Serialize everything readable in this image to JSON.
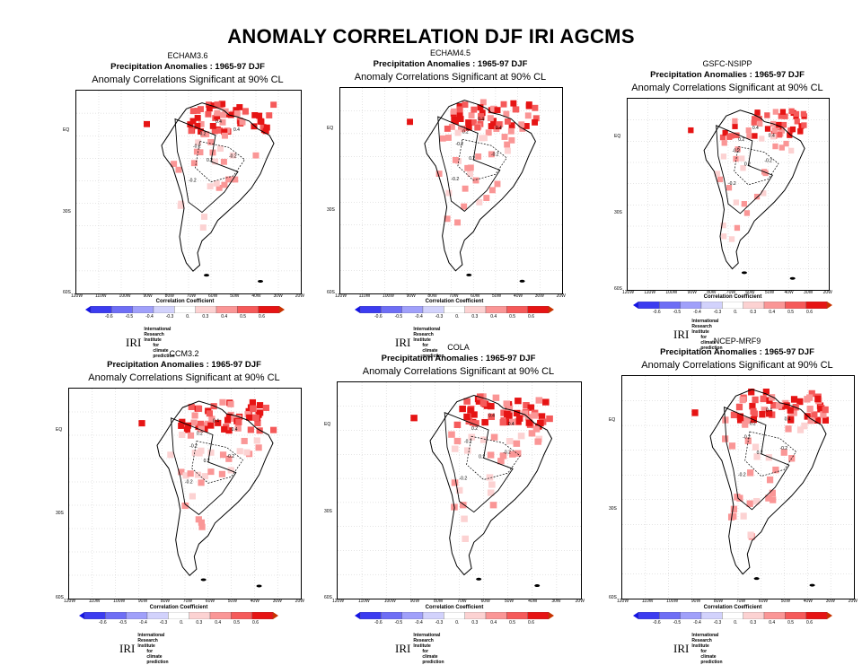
{
  "title": "ANOMALY CORRELATION  DJF IRI AGCMS",
  "panels": [
    {
      "model": "ECHAM3.6",
      "subtitle": "Precipitation Anomalies : 1965-97 DJF",
      "significance": "Anomaly Correlations Significant at 90% CL"
    },
    {
      "model": "ECHAM4.5",
      "subtitle": "Precipitation Anomalies : 1965-97 DJF",
      "significance": "Anomaly Correlations Significant at 90% CL"
    },
    {
      "model": "GSFC-NSIPP",
      "subtitle": "Precipitation Anomalies : 1965-97 DJF",
      "significance": "Anomaly Correlations Significant at 90% CL"
    },
    {
      "model": "CCM3.2",
      "subtitle": "Precipitation Anomalies : 1965-97 DJF",
      "significance": "Anomaly Correlations Significant at 90% CL"
    },
    {
      "model": "COLA",
      "subtitle": "Precipitation Anomalies : 1965-97 DJF",
      "significance": "Anomaly Correlations Significant at 90% CL"
    },
    {
      "model": "NCEP-MRF9",
      "subtitle": "Precipitation Anomalies : 1965-97 DJF",
      "significance": "Anomaly Correlations Significant at 90% CL"
    }
  ],
  "lat_labels": [
    "EQ",
    "30S",
    "60S"
  ],
  "lon_labels": [
    "120W",
    "110W",
    "100W",
    "90W",
    "80W",
    "70W",
    "60W",
    "50W",
    "40W",
    "30W",
    "20W"
  ],
  "colorbar": {
    "title": "Correlation Coefficient",
    "ticks": [
      "-0.6",
      "-0.5",
      "-0.4",
      "-0.3",
      "0.",
      "0.3",
      "0.4",
      "0.5",
      "0.6"
    ],
    "colors": [
      "#1414e6",
      "#3c3cf0",
      "#6e6ef5",
      "#a0a0fa",
      "#d2d2fc",
      "#ffffff",
      "#fcd2d2",
      "#fa9696",
      "#f55a5a",
      "#e61414",
      "#c83200"
    ]
  },
  "contour_labels": [
    "0.4",
    "0.2",
    "-0.2",
    "0.2",
    "-0.2",
    "0.4",
    "-0.2"
  ],
  "iri": {
    "logo": "IRI",
    "line1": "International Research Institute",
    "line2": "for climate prediction"
  }
}
